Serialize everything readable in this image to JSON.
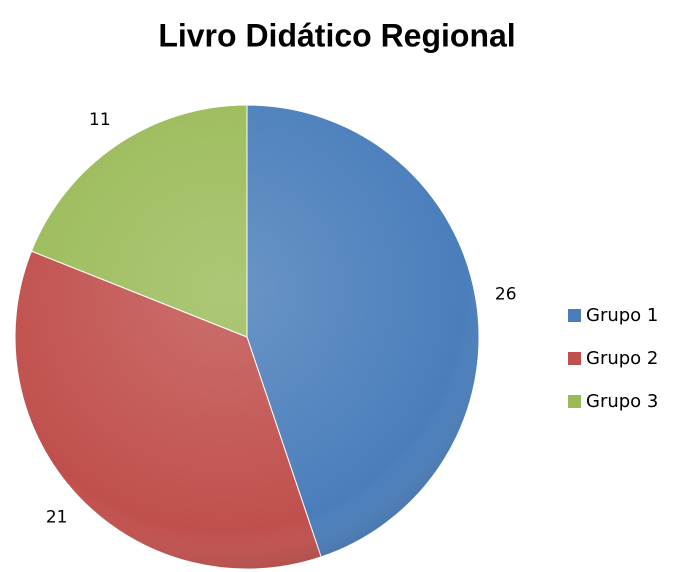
{
  "chart_data": {
    "type": "pie",
    "title": "Livro Didático Regional",
    "categories": [
      "Grupo 1",
      "Grupo 2",
      "Grupo 3"
    ],
    "values": [
      26,
      21,
      11
    ],
    "colors": [
      "#4a7ebb",
      "#c0504d",
      "#9bbb59"
    ],
    "legend": "right"
  }
}
